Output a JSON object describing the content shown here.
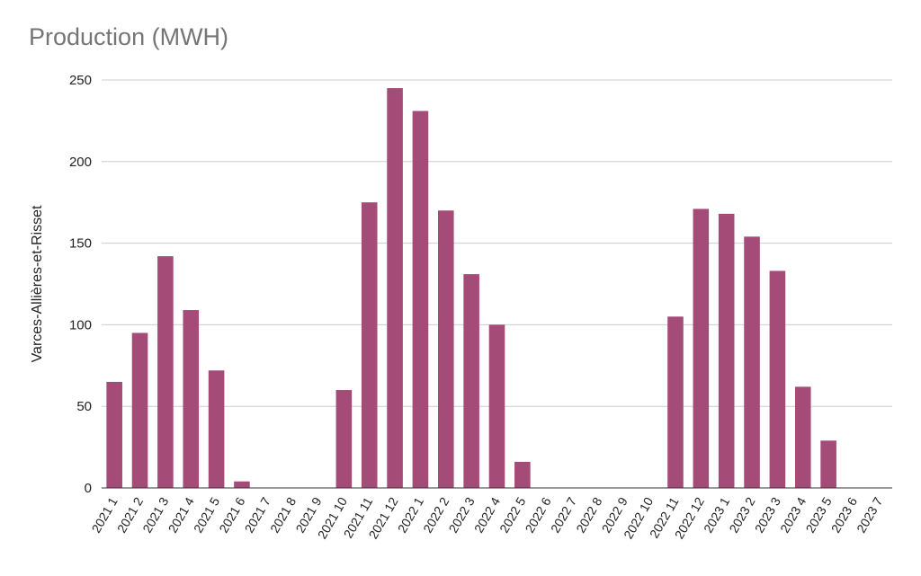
{
  "chart_data": {
    "type": "bar",
    "title": "Production (MWH)",
    "xlabel": "",
    "ylabel": "Varces-Allières-et-Risset",
    "ylim": [
      0,
      250
    ],
    "yticks": [
      0,
      50,
      100,
      150,
      200,
      250
    ],
    "grid": true,
    "bar_color": "#a44b78",
    "categories": [
      "2021 1",
      "2021 2",
      "2021 3",
      "2021 4",
      "2021 5",
      "2021 6",
      "2021 7",
      "2021 8",
      "2021 9",
      "2021 10",
      "2021 11",
      "2021 12",
      "2022 1",
      "2022 2",
      "2022 3",
      "2022 4",
      "2022 5",
      "2022 6",
      "2022 7",
      "2022 8",
      "2022 9",
      "2022 10",
      "2022 11",
      "2022 12",
      "2023 1",
      "2023 2",
      "2023 3",
      "2023 4",
      "2023 5",
      "2023 6",
      "2023 7"
    ],
    "values": [
      65,
      95,
      142,
      109,
      72,
      4,
      0,
      0,
      0,
      60,
      175,
      245,
      231,
      170,
      131,
      100,
      16,
      0,
      0,
      0,
      0,
      0,
      105,
      171,
      168,
      154,
      133,
      62,
      29,
      0,
      0
    ]
  }
}
